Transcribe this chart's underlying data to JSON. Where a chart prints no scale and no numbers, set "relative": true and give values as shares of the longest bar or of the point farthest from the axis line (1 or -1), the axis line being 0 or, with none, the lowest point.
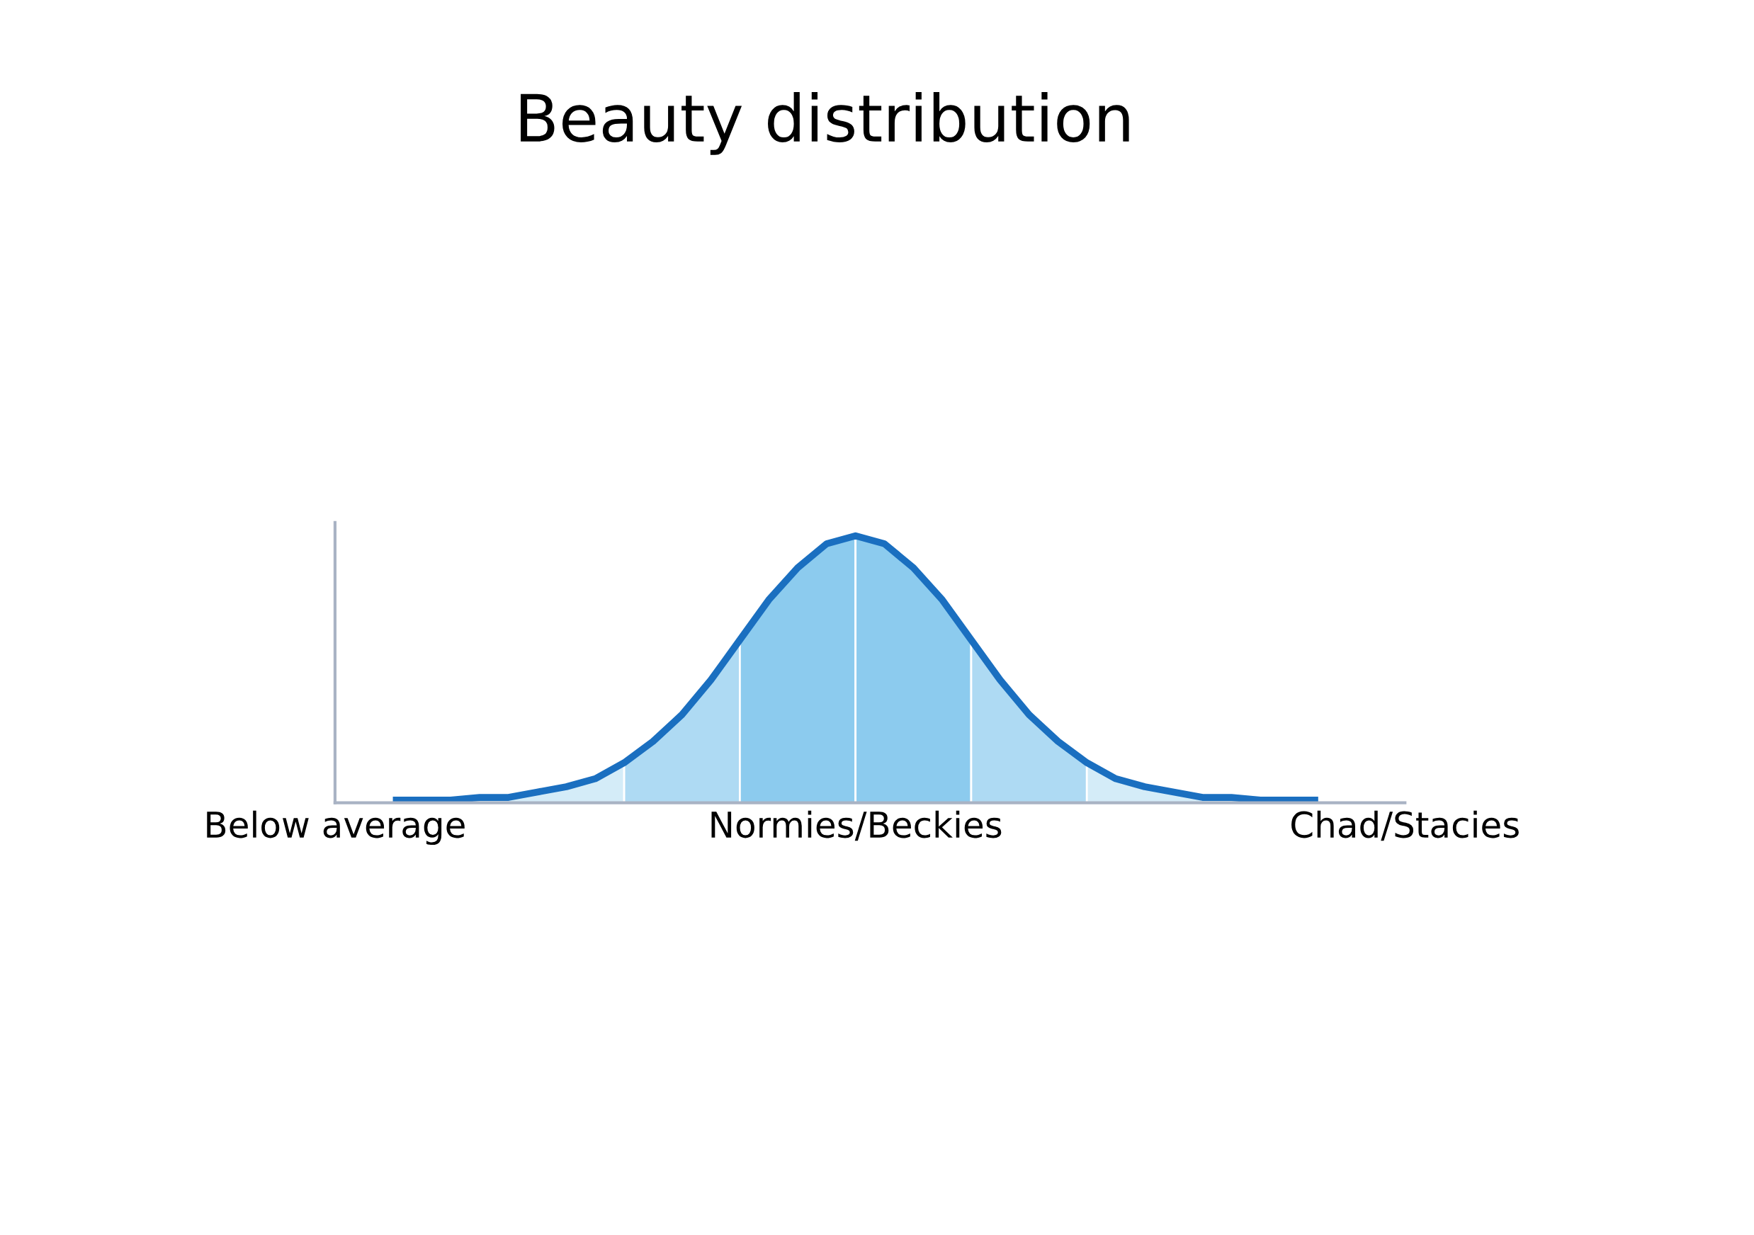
{
  "chart_data": {
    "type": "area",
    "title": "Beauty distribution",
    "relative": true,
    "categories": [
      "Below average",
      null,
      null,
      null,
      null,
      null,
      null,
      null,
      null,
      null,
      null,
      null,
      null,
      null,
      null,
      null,
      null,
      null,
      "Normies/Beckies",
      null,
      null,
      null,
      null,
      null,
      null,
      null,
      null,
      null,
      null,
      null,
      null,
      null,
      null,
      null,
      null,
      null,
      null,
      "Chad/Stacies"
    ],
    "grid": false,
    "series": [
      {
        "color": "#d4ecf8",
        "values": [
          null,
          null,
          0.01,
          0.01,
          0.01,
          0.02,
          0.02,
          0.04,
          0.06,
          0.09,
          0.15,
          null,
          null,
          null,
          null,
          null,
          null,
          null,
          null,
          null,
          null,
          null,
          null,
          null,
          null,
          null,
          null,
          null,
          null,
          null,
          null,
          null,
          null,
          null,
          null,
          null,
          null,
          null
        ]
      },
      {
        "color": "#aedaf3",
        "values": [
          null,
          null,
          null,
          null,
          null,
          null,
          null,
          null,
          null,
          null,
          0.15,
          0.23,
          0.33,
          0.46,
          0.61,
          null,
          null,
          null,
          null,
          null,
          null,
          null,
          null,
          null,
          null,
          null,
          null,
          null,
          null,
          null,
          null,
          null,
          null,
          null,
          null,
          null,
          null,
          null
        ]
      },
      {
        "color": "#8ccbee",
        "values": [
          null,
          null,
          null,
          null,
          null,
          null,
          null,
          null,
          null,
          null,
          null,
          null,
          null,
          null,
          0.61,
          0.76,
          0.88,
          0.97,
          1,
          null,
          null,
          null,
          null,
          null,
          null,
          null,
          null,
          null,
          null,
          null,
          null,
          null,
          null,
          null,
          null,
          null,
          null,
          null
        ]
      },
      {
        "color": "#8ccbee",
        "values": [
          null,
          null,
          null,
          null,
          null,
          null,
          null,
          null,
          null,
          null,
          null,
          null,
          null,
          null,
          null,
          null,
          null,
          null,
          1,
          0.97,
          0.88,
          0.76,
          0.61,
          null,
          null,
          null,
          null,
          null,
          null,
          null,
          null,
          null,
          null,
          null,
          null,
          null,
          null,
          null
        ]
      },
      {
        "color": "#aedaf3",
        "values": [
          null,
          null,
          null,
          null,
          null,
          null,
          null,
          null,
          null,
          null,
          null,
          null,
          null,
          null,
          null,
          null,
          null,
          null,
          null,
          null,
          null,
          null,
          0.61,
          0.46,
          0.33,
          0.23,
          0.15,
          null,
          null,
          null,
          null,
          null,
          null,
          null,
          null,
          null,
          null,
          null
        ]
      },
      {
        "color": "#d4ecf8",
        "values": [
          null,
          null,
          null,
          null,
          null,
          null,
          null,
          null,
          null,
          null,
          null,
          null,
          null,
          null,
          null,
          null,
          null,
          null,
          null,
          null,
          null,
          null,
          null,
          null,
          null,
          null,
          0.15,
          0.09,
          0.06,
          0.04,
          0.02,
          0.02,
          0.01,
          0.01,
          0.01,
          null,
          null,
          null
        ]
      },
      {
        "type": "line",
        "color": "#1a6fc0",
        "values": [
          null,
          null,
          0.01,
          0.01,
          0.01,
          0.02,
          0.02,
          0.04,
          0.06,
          0.09,
          0.15,
          0.23,
          0.33,
          0.46,
          0.61,
          0.76,
          0.88,
          0.97,
          1,
          0.97,
          0.88,
          0.76,
          0.61,
          0.46,
          0.33,
          0.23,
          0.15,
          0.09,
          0.06,
          0.04,
          0.02,
          0.02,
          0.01,
          0.01,
          0.01,
          null,
          null,
          null
        ]
      }
    ]
  }
}
